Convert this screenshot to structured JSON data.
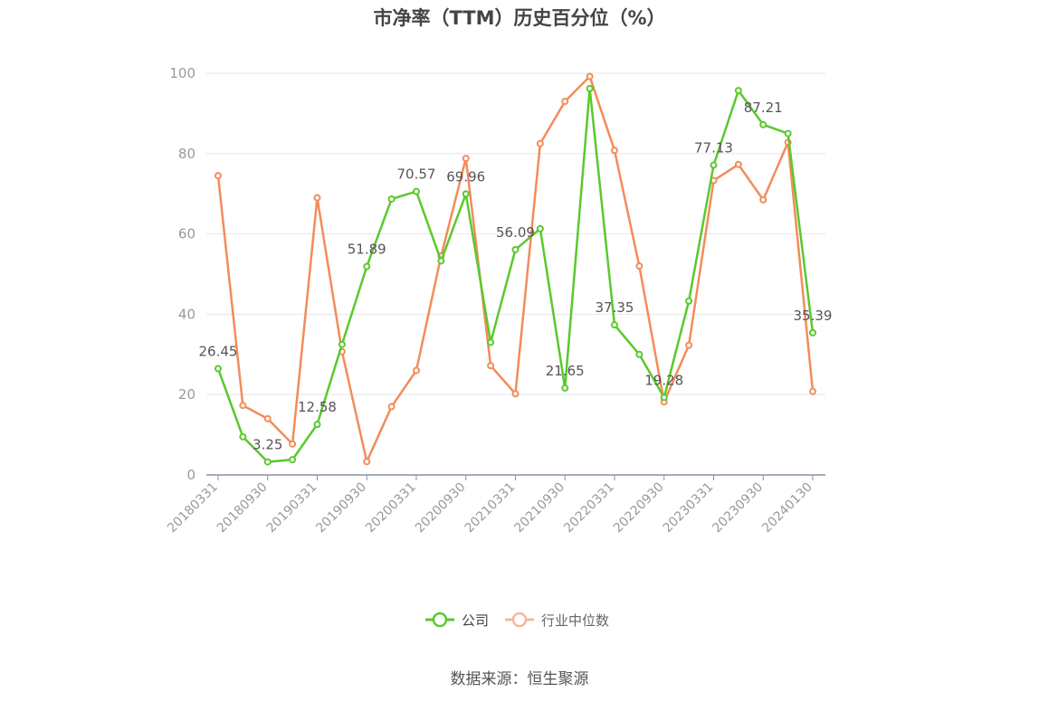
{
  "source": "数据来源：恒生聚源",
  "colors": {
    "company": "#5ac92d",
    "industry": "#f28c5a",
    "industry_legend": "#f8b59a",
    "axis": "#8a8fa3",
    "grid": "#e6e6e6",
    "tick_text": "#9a9a9a",
    "label_text": "#555555"
  },
  "chart_data": {
    "type": "line",
    "title": "市净率（TTM）历史百分位（%）",
    "ylim": [
      0,
      100
    ],
    "yticks": [
      "0",
      "20",
      "40",
      "60",
      "80",
      "100"
    ],
    "grid": true,
    "legend_position": "bottom",
    "x": [
      "20180331",
      "20180630",
      "20180930",
      "20181231",
      "20190331",
      "20190630",
      "20190930",
      "20191231",
      "20200331",
      "20200630",
      "20200930",
      "20201231",
      "20210331",
      "20210630",
      "20210930",
      "20211231",
      "20220331",
      "20220630",
      "20220930",
      "20221231",
      "20230331",
      "20230630",
      "20230930",
      "20231231",
      "20240130"
    ],
    "xtick_labels": [
      "20180331",
      "20180930",
      "20190331",
      "20190930",
      "20200331",
      "20200930",
      "20210331",
      "20210930",
      "20220331",
      "20220930",
      "20230331",
      "20230930",
      "20240130"
    ],
    "series": [
      {
        "name": "公司",
        "values": [
          26.45,
          9.5,
          3.25,
          3.8,
          12.58,
          32.5,
          51.89,
          68.7,
          70.57,
          53.3,
          69.96,
          33.0,
          56.09,
          61.3,
          21.65,
          96.2,
          37.35,
          30.0,
          19.28,
          43.3,
          77.13,
          95.7,
          87.21,
          85.0,
          35.39
        ],
        "labels": [
          "26.45",
          "",
          "3.25",
          "",
          "12.58",
          "",
          "51.89",
          "",
          "70.57",
          "",
          "69.96",
          "",
          "56.09",
          "",
          "21.65",
          "",
          "37.35",
          "",
          "19.28",
          "",
          "77.13",
          "",
          "87.21",
          "",
          "35.39"
        ]
      },
      {
        "name": "行业中位数",
        "values": [
          74.5,
          17.3,
          14.0,
          7.7,
          69.0,
          30.7,
          3.3,
          17.0,
          26.0,
          54.5,
          78.8,
          27.2,
          20.2,
          82.5,
          93.0,
          99.2,
          80.8,
          52.0,
          18.2,
          32.3,
          73.3,
          77.3,
          68.5,
          82.8,
          20.8
        ]
      }
    ]
  }
}
